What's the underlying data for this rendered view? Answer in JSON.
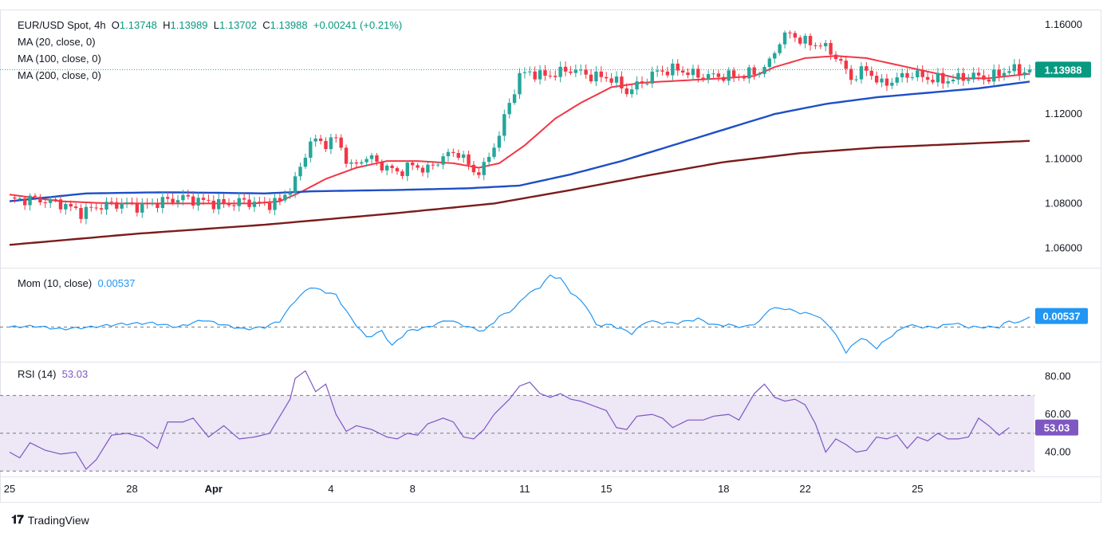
{
  "colors": {
    "up": "#26a69a",
    "down": "#f23645",
    "ma20": "#f23645",
    "ma100": "#1e4fc6",
    "ma200": "#7b1c1c",
    "mom": "#2196f3",
    "rsi": "#7e57c2",
    "rsi_band": "#ede7f6",
    "grid": "#e0e3eb",
    "axis_text": "#131722"
  },
  "header": {
    "symbol": "EUR/USD Spot, 4h",
    "open_label": "O",
    "open": "1.13748",
    "high_label": "H",
    "high": "1.13989",
    "low_label": "L",
    "low": "1.13702",
    "close_label": "C",
    "close": "1.13988",
    "change": "+0.00241 (+0.21%)"
  },
  "indicators": {
    "ma20": "MA (20, close, 0)",
    "ma100": "MA (100, close, 0)",
    "ma200": "MA (200, close, 0)",
    "mom_label": "Mom (10, close)",
    "mom_value": "0.00537",
    "rsi_label": "RSI (14)",
    "rsi_value": "53.03"
  },
  "footer": {
    "brand": "TradingView"
  },
  "chart_data": {
    "type": "candlestick",
    "title": "EUR/USD Spot, 4h",
    "last_price": "1.13988",
    "price_axis": {
      "range": [
        1.052,
        1.166
      ],
      "ticks": [
        "1.16000",
        "1.14000",
        "1.12000",
        "1.10000",
        "1.08000",
        "1.06000"
      ]
    },
    "x_axis": {
      "ticks": [
        "25",
        "28",
        "Apr",
        "4",
        "8",
        "11",
        "15",
        "18",
        "22",
        "25"
      ]
    },
    "price_keypoints": [
      [
        0,
        1.0815
      ],
      [
        5,
        1.082
      ],
      [
        10,
        1.08
      ],
      [
        14,
        1.076
      ],
      [
        18,
        1.079
      ],
      [
        22,
        1.08
      ],
      [
        26,
        1.0785
      ],
      [
        30,
        1.081
      ],
      [
        34,
        1.0825
      ],
      [
        38,
        1.081
      ],
      [
        42,
        1.0795
      ],
      [
        46,
        1.081
      ],
      [
        50,
        1.0795
      ],
      [
        53,
        1.081
      ],
      [
        56,
        1.09
      ],
      [
        59,
        1.108
      ],
      [
        62,
        1.107
      ],
      [
        64,
        1.109
      ],
      [
        67,
        1.096
      ],
      [
        70,
        1.101
      ],
      [
        73,
        1.097
      ],
      [
        76,
        1.094
      ],
      [
        79,
        1.097
      ],
      [
        82,
        1.095
      ],
      [
        85,
        1.101
      ],
      [
        88,
        1.103
      ],
      [
        91,
        1.094
      ],
      [
        93,
        1.096
      ],
      [
        96,
        1.111
      ],
      [
        98,
        1.125
      ],
      [
        100,
        1.137
      ],
      [
        102,
        1.139
      ],
      [
        104,
        1.137
      ],
      [
        107,
        1.138
      ],
      [
        110,
        1.14
      ],
      [
        114,
        1.137
      ],
      [
        118,
        1.136
      ],
      [
        121,
        1.13
      ],
      [
        124,
        1.134
      ],
      [
        127,
        1.139
      ],
      [
        131,
        1.14
      ],
      [
        135,
        1.137
      ],
      [
        139,
        1.137
      ],
      [
        143,
        1.137
      ],
      [
        147,
        1.139
      ],
      [
        149,
        1.143
      ],
      [
        151,
        1.153
      ],
      [
        153,
        1.156
      ],
      [
        156,
        1.152
      ],
      [
        159,
        1.151
      ],
      [
        162,
        1.146
      ],
      [
        165,
        1.136
      ],
      [
        168,
        1.14
      ],
      [
        171,
        1.133
      ],
      [
        174,
        1.136
      ],
      [
        177,
        1.138
      ],
      [
        180,
        1.136
      ],
      [
        183,
        1.135
      ],
      [
        186,
        1.136
      ],
      [
        189,
        1.137
      ],
      [
        192,
        1.136
      ],
      [
        194,
        1.138
      ],
      [
        196,
        1.14
      ],
      [
        198,
        1.139
      ],
      [
        200,
        1.1399
      ]
    ],
    "series": [
      {
        "name": "MA (20, close, 0)",
        "keypoints": [
          [
            0,
            1.084
          ],
          [
            10,
            1.081
          ],
          [
            20,
            1.08
          ],
          [
            30,
            1.08
          ],
          [
            40,
            1.08
          ],
          [
            48,
            1.08
          ],
          [
            53,
            1.081
          ],
          [
            57,
            1.085
          ],
          [
            62,
            1.091
          ],
          [
            68,
            1.096
          ],
          [
            74,
            1.099
          ],
          [
            80,
            1.099
          ],
          [
            87,
            1.098
          ],
          [
            92,
            1.096
          ],
          [
            96,
            1.098
          ],
          [
            101,
            1.106
          ],
          [
            107,
            1.118
          ],
          [
            112,
            1.125
          ],
          [
            118,
            1.132
          ],
          [
            124,
            1.134
          ],
          [
            132,
            1.135
          ],
          [
            140,
            1.136
          ],
          [
            146,
            1.137
          ],
          [
            150,
            1.141
          ],
          [
            156,
            1.145
          ],
          [
            162,
            1.146
          ],
          [
            168,
            1.145
          ],
          [
            174,
            1.142
          ],
          [
            180,
            1.139
          ],
          [
            186,
            1.136
          ],
          [
            192,
            1.136
          ],
          [
            200,
            1.138
          ]
        ]
      },
      {
        "name": "MA (100, close, 0)",
        "keypoints": [
          [
            0,
            1.081
          ],
          [
            15,
            1.0845
          ],
          [
            30,
            1.085
          ],
          [
            40,
            1.0848
          ],
          [
            50,
            1.0845
          ],
          [
            60,
            1.0855
          ],
          [
            75,
            1.086
          ],
          [
            90,
            1.0868
          ],
          [
            100,
            1.088
          ],
          [
            110,
            1.093
          ],
          [
            120,
            1.099
          ],
          [
            130,
            1.106
          ],
          [
            140,
            1.113
          ],
          [
            150,
            1.12
          ],
          [
            160,
            1.1245
          ],
          [
            170,
            1.1275
          ],
          [
            180,
            1.1295
          ],
          [
            190,
            1.1315
          ],
          [
            200,
            1.1345
          ]
        ]
      },
      {
        "name": "MA (200, close, 0)",
        "keypoints": [
          [
            0,
            1.0615
          ],
          [
            25,
            1.0665
          ],
          [
            50,
            1.0705
          ],
          [
            75,
            1.0755
          ],
          [
            95,
            1.08
          ],
          [
            110,
            1.086
          ],
          [
            125,
            1.0925
          ],
          [
            140,
            1.0985
          ],
          [
            155,
            1.1025
          ],
          [
            170,
            1.105
          ],
          [
            185,
            1.1065
          ],
          [
            200,
            1.108
          ]
        ]
      }
    ],
    "momentum": {
      "label": "Mom (10, close)",
      "last": "0.00537",
      "zero_line": 0,
      "keypoints": [
        [
          0,
          0.0
        ],
        [
          5,
          0.0005
        ],
        [
          10,
          -0.001
        ],
        [
          16,
          0.0
        ],
        [
          22,
          0.0015
        ],
        [
          28,
          0.002
        ],
        [
          33,
          0.0
        ],
        [
          38,
          0.0035
        ],
        [
          42,
          0.001
        ],
        [
          46,
          -0.001
        ],
        [
          50,
          0.0
        ],
        [
          53,
          0.003
        ],
        [
          56,
          0.013
        ],
        [
          59,
          0.0195
        ],
        [
          62,
          0.017
        ],
        [
          64,
          0.0155
        ],
        [
          67,
          0.004
        ],
        [
          70,
          -0.005
        ],
        [
          73,
          -0.002
        ],
        [
          75,
          -0.009
        ],
        [
          78,
          -0.002
        ],
        [
          82,
          0.0
        ],
        [
          86,
          0.0035
        ],
        [
          90,
          0.0
        ],
        [
          93,
          -0.002
        ],
        [
          96,
          0.005
        ],
        [
          99,
          0.009
        ],
        [
          101,
          0.015
        ],
        [
          104,
          0.0195
        ],
        [
          106,
          0.025
        ],
        [
          108,
          0.0235
        ],
        [
          110,
          0.017
        ],
        [
          113,
          0.0105
        ],
        [
          115,
          0.001
        ],
        [
          118,
          0.001
        ],
        [
          122,
          -0.003
        ],
        [
          125,
          0.003
        ],
        [
          128,
          0.002
        ],
        [
          131,
          0.002
        ],
        [
          135,
          0.004
        ],
        [
          138,
          0.001
        ],
        [
          141,
          0.001
        ],
        [
          144,
          0.0
        ],
        [
          147,
          0.0025
        ],
        [
          149,
          0.009
        ],
        [
          152,
          0.009
        ],
        [
          155,
          0.007
        ],
        [
          158,
          0.006
        ],
        [
          161,
          0.0
        ],
        [
          164,
          -0.012
        ],
        [
          167,
          -0.005
        ],
        [
          170,
          -0.01
        ],
        [
          173,
          -0.004
        ],
        [
          176,
          0.001
        ],
        [
          179,
          0.0
        ],
        [
          182,
          0.0
        ],
        [
          185,
          0.002
        ],
        [
          188,
          0.0
        ],
        [
          191,
          0.0
        ],
        [
          194,
          0.0
        ],
        [
          196,
          0.003
        ],
        [
          198,
          0.002
        ],
        [
          200,
          0.0054
        ]
      ],
      "range": [
        -0.016,
        0.028
      ]
    },
    "rsi": {
      "label": "RSI (14)",
      "last": "53.03",
      "ticks": [
        "80.00",
        "60.00",
        "40.00"
      ],
      "overbought": 70,
      "oversold": 30,
      "mid": 50,
      "range": [
        28,
        87
      ],
      "keypoints": [
        [
          0,
          40
        ],
        [
          2,
          37
        ],
        [
          4,
          45
        ],
        [
          7,
          41
        ],
        [
          10,
          39
        ],
        [
          13,
          40
        ],
        [
          15,
          31
        ],
        [
          17,
          36
        ],
        [
          20,
          49
        ],
        [
          23,
          50
        ],
        [
          26,
          48
        ],
        [
          29,
          42
        ],
        [
          31,
          56
        ],
        [
          34,
          56
        ],
        [
          36,
          58
        ],
        [
          39,
          48
        ],
        [
          42,
          54
        ],
        [
          45,
          47
        ],
        [
          48,
          48
        ],
        [
          51,
          50
        ],
        [
          53,
          59
        ],
        [
          55,
          68
        ],
        [
          56,
          79
        ],
        [
          58,
          83
        ],
        [
          60,
          72
        ],
        [
          62,
          76
        ],
        [
          64,
          60
        ],
        [
          66,
          51
        ],
        [
          68,
          54
        ],
        [
          71,
          52
        ],
        [
          74,
          48
        ],
        [
          76,
          47
        ],
        [
          78,
          50
        ],
        [
          80,
          49
        ],
        [
          82,
          55
        ],
        [
          85,
          58
        ],
        [
          87,
          56
        ],
        [
          89,
          48
        ],
        [
          91,
          47
        ],
        [
          93,
          52
        ],
        [
          95,
          60
        ],
        [
          98,
          68
        ],
        [
          100,
          75
        ],
        [
          102,
          77
        ],
        [
          104,
          71
        ],
        [
          106,
          69
        ],
        [
          108,
          71
        ],
        [
          110,
          68
        ],
        [
          112,
          67
        ],
        [
          115,
          64
        ],
        [
          117,
          62
        ],
        [
          119,
          53
        ],
        [
          121,
          52
        ],
        [
          123,
          59
        ],
        [
          126,
          60
        ],
        [
          128,
          58
        ],
        [
          130,
          53
        ],
        [
          133,
          57
        ],
        [
          136,
          57
        ],
        [
          138,
          59
        ],
        [
          141,
          60
        ],
        [
          143,
          57
        ],
        [
          146,
          71
        ],
        [
          148,
          76
        ],
        [
          150,
          69
        ],
        [
          152,
          67
        ],
        [
          154,
          68
        ],
        [
          156,
          65
        ],
        [
          158,
          55
        ],
        [
          160,
          40
        ],
        [
          162,
          47
        ],
        [
          164,
          44
        ],
        [
          166,
          40
        ],
        [
          168,
          41
        ],
        [
          170,
          48
        ],
        [
          172,
          47
        ],
        [
          174,
          49
        ],
        [
          176,
          42
        ],
        [
          178,
          48
        ],
        [
          180,
          46
        ],
        [
          182,
          50
        ],
        [
          184,
          47
        ],
        [
          186,
          47
        ],
        [
          188,
          48
        ],
        [
          190,
          58
        ],
        [
          192,
          54
        ],
        [
          194,
          49
        ],
        [
          196,
          53
        ]
      ]
    }
  }
}
